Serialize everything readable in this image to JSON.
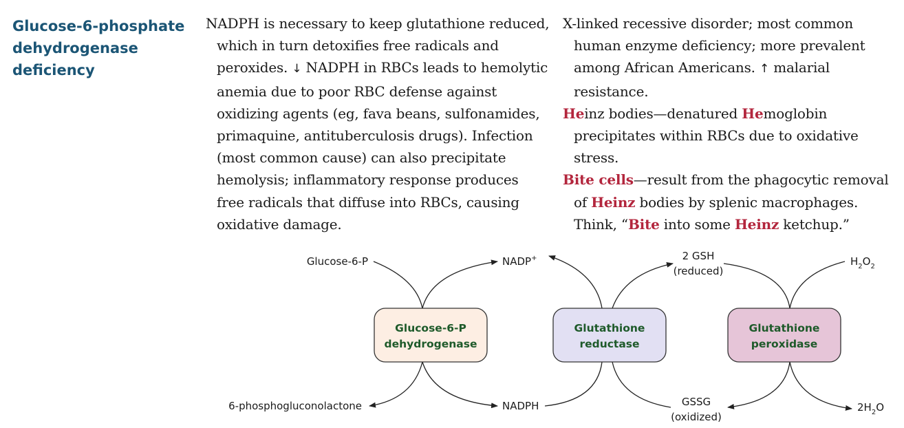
{
  "heading": {
    "line1": "Glucose-6-phosphate",
    "line2": "dehydrogenase",
    "line3": "deficiency"
  },
  "left_column": {
    "paragraph": {
      "part1": "NADPH is necessary to keep glutathione reduced, which in turn detoxifies free radicals and peroxides. ",
      "arrow": "↓",
      "part2": " NADPH in RBCs leads to hemolytic anemia due to poor RBC defense against oxidizing agents (eg, fava beans, sulfonamides, primaquine, antituberculosis drugs). Infection (most common cause) can also precipitate hemolysis; inflammatory response produces free radicals that diffuse into RBCs, causing oxidative damage."
    }
  },
  "right_column": {
    "p1": {
      "part1": "X-linked recessive disorder; most common human enzyme deficiency; more prevalent among African Americans. ",
      "arrow": "↑",
      "part2": " malarial resistance."
    },
    "p2": {
      "he1": "He",
      "t1": "inz bodies—denatured ",
      "he2": "He",
      "t2": "moglobin precipitates within RBCs due to oxidative stress."
    },
    "p3": {
      "bite1": "Bite cells",
      "t1": "—result from the phagocytic removal of ",
      "heinz1": "Heinz",
      "t2": " bodies by splenic macrophages. Think, “",
      "bite2": "Bite",
      "t3": " into some ",
      "heinz2": "Heinz",
      "t4": " ketchup.”"
    }
  },
  "diagram": {
    "enzymes": [
      {
        "line1": "Glucose-6-P",
        "line2": "dehydrogenase",
        "fill": "#fdeee3"
      },
      {
        "line1": "Glutathione",
        "line2": "reductase",
        "fill": "#e2e0f3"
      },
      {
        "line1": "Glutathione",
        "line2": "peroxidase",
        "fill": "#e6c5d8"
      }
    ],
    "labels": {
      "g6p": "Glucose-6-P",
      "nadp_base": "NADP",
      "nadp_sup": "+",
      "gsh": "2 GSH",
      "gsh_state": "(reduced)",
      "h2o2_h": "H",
      "h2o2_sub1": "2",
      "h2o2_o": "O",
      "h2o2_sub2": "2",
      "phospho": "6-phosphogluconolactone",
      "nadph": "NADPH",
      "gssg": "GSSG",
      "gssg_state": "(oxidized)",
      "h2o_pre": "2H",
      "h2o_sub": "2",
      "h2o_o": "O"
    },
    "colors": {
      "enzyme_text": "#1e5a2a",
      "box_stroke": "#333333",
      "arrow": "#222222"
    }
  }
}
